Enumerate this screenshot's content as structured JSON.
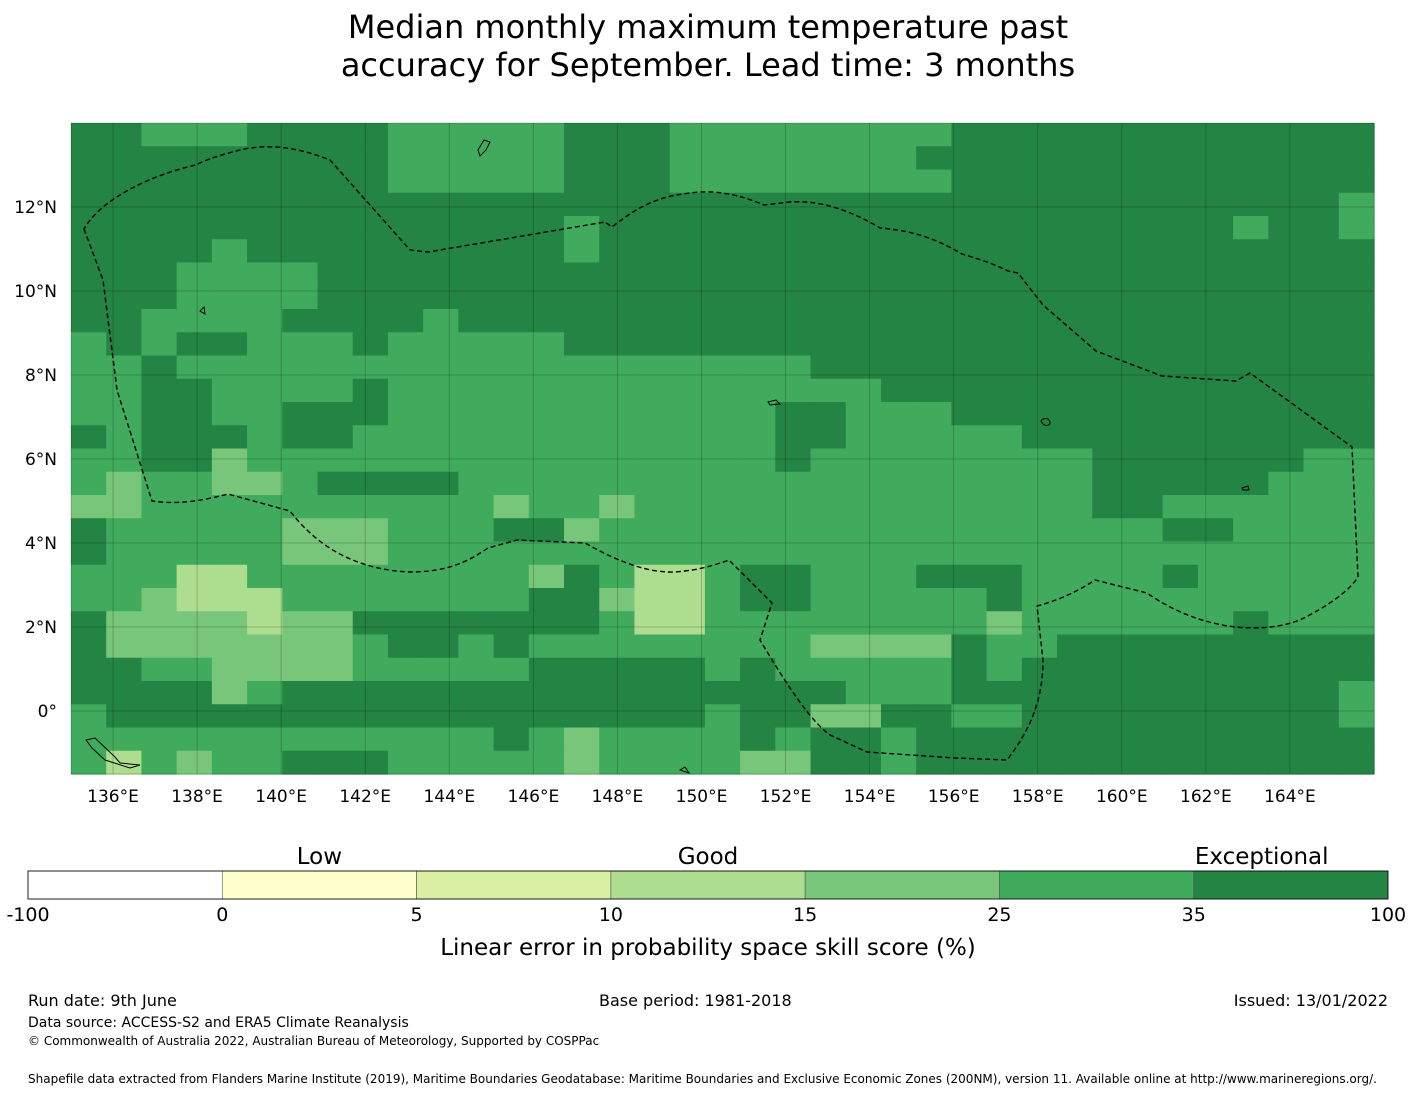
{
  "title": {
    "line1": "Median monthly maximum temperature past",
    "line2": "accuracy for September. Lead time: 3 months"
  },
  "map": {
    "lon_ticks": [
      "136°E",
      "138°E",
      "140°E",
      "142°E",
      "144°E",
      "146°E",
      "148°E",
      "150°E",
      "152°E",
      "154°E",
      "156°E",
      "158°E",
      "160°E",
      "162°E",
      "164°E"
    ],
    "lat_ticks": [
      "12°N",
      "10°N",
      "8°N",
      "6°N",
      "4°N",
      "2°N",
      "0°"
    ],
    "extent": {
      "lon_min": 135,
      "lon_max": 166,
      "lat_min": -1.5,
      "lat_max": 14
    }
  },
  "colorbar": {
    "category_labels": [
      "Low",
      "Good",
      "Exceptional"
    ],
    "tick_labels": [
      "-100",
      "0",
      "5",
      "10",
      "15",
      "25",
      "35",
      "100"
    ],
    "colors": [
      "#ffffff",
      "#ffffcc",
      "#d9f0a3",
      "#addd8e",
      "#78c679",
      "#41ab5d",
      "#238443"
    ],
    "label": "Linear error in probability space skill score (%)"
  },
  "footer": {
    "run_date": "Run date: 9th June",
    "base_period": "Base period: 1981-2018",
    "issued": "Issued: 13/01/2022",
    "data_source": "Data source: ACCESS-S2 and ERA5 Climate Reanalysis",
    "copyright": "© Commonwealth of Australia 2022, Australian Bureau of Meteorology, Supported by COSPPac",
    "shapefile": "Shapefile data extracted from Flanders Marine Institute (2019), Maritime Boundaries Geodatabase: Maritime Boundaries and Exclusive Economic Zones (200NM), version 11. Available online at http://www.marineregions.org/."
  }
}
